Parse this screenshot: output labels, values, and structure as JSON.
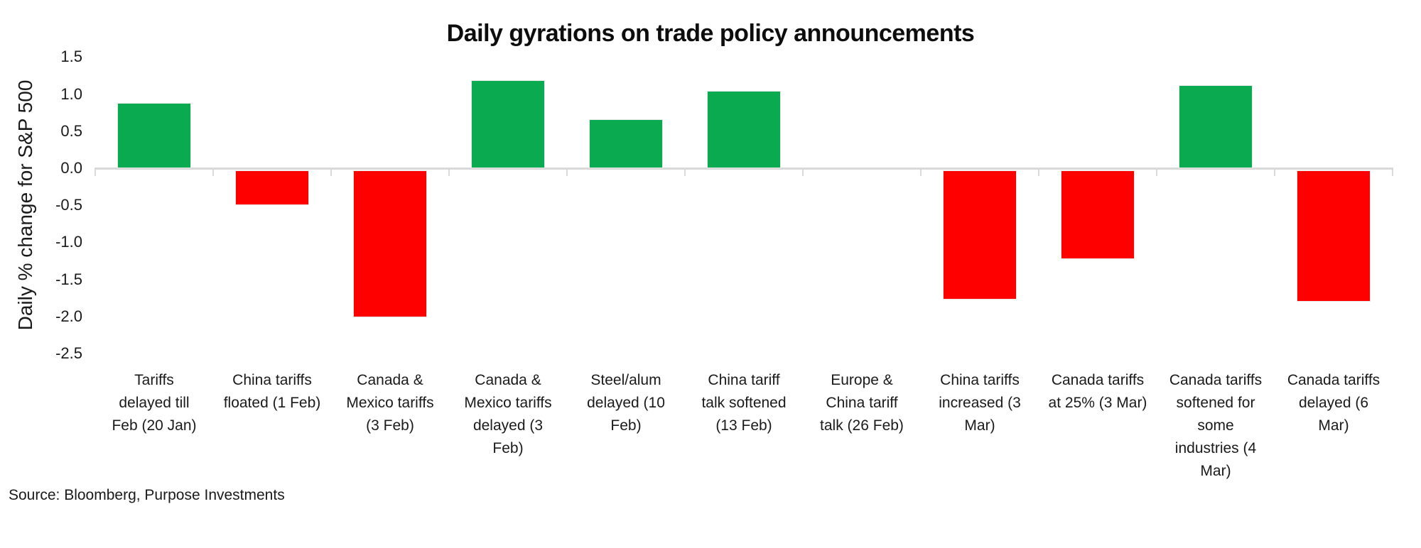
{
  "source": "Source: Bloomberg, Purpose Investments",
  "chart_data": {
    "type": "bar",
    "title": "Daily gyrations on trade policy announcements",
    "xlabel": "",
    "ylabel": "Daily % change for S&P 500",
    "ylim": [
      -2.5,
      1.5
    ],
    "yticks": [
      1.5,
      1.0,
      0.5,
      0.0,
      -0.5,
      -1.0,
      -1.5,
      -2.0,
      -2.5
    ],
    "grid": false,
    "legend_position": "none",
    "positive_color": "#0aaa50",
    "negative_color": "#ff0000",
    "axis_color": "#d9d9d9",
    "categories": [
      "Tariffs\ndelayed till\nFeb (20 Jan)",
      "China tariffs\nfloated (1 Feb)",
      "Canada &\nMexico tariffs\n(3 Feb)",
      "Canada &\nMexico tariffs\ndelayed (3\nFeb)",
      "Steel/alum\ndelayed (10\nFeb)",
      "China tariff\ntalk softened\n(13 Feb)",
      "Europe &\nChina tariff\ntalk (26 Feb)",
      "China tariffs\nincreased (3\nMar)",
      "Canada tariffs\nat 25% (3 Mar)",
      "Canada tariffs\nsoftened for\nsome\nindustries (4\nMar)",
      "Canada tariffs\ndelayed (6\nMar)"
    ],
    "values": [
      0.88,
      -0.5,
      -2.01,
      1.19,
      0.66,
      1.04,
      0,
      -1.77,
      -1.23,
      1.12,
      -1.8
    ]
  }
}
